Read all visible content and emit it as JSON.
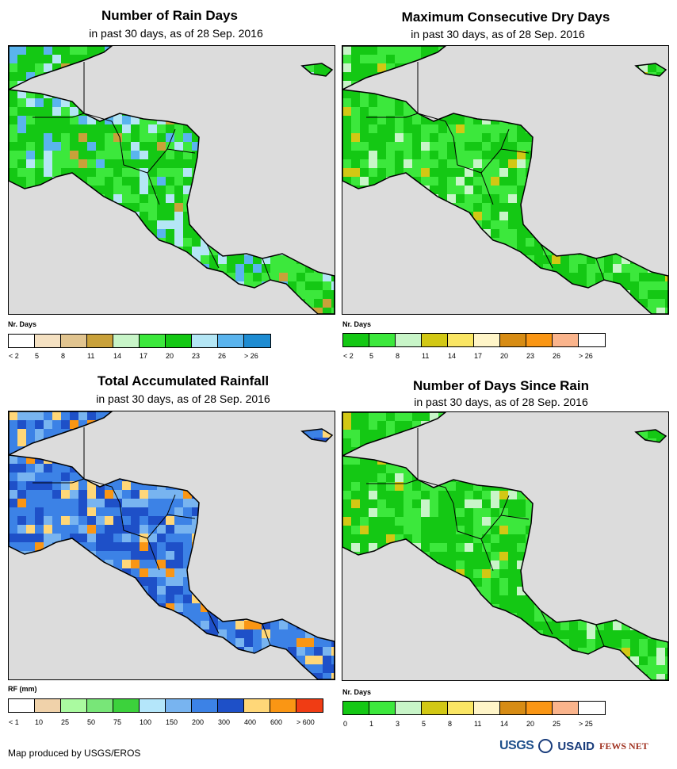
{
  "panels": [
    {
      "title": "Number of Rain Days",
      "subtitle": "in past 30 days, as of 28 Sep. 2016",
      "legend_title": "Nr. Days",
      "legend_colors": [
        "#ffffff",
        "#f5e1c2",
        "#e1c48f",
        "#c9a13a",
        "#c8f5c8",
        "#3ce83c",
        "#14c814",
        "#b4e6f5",
        "#5ab4ee",
        "#1e8cd2"
      ],
      "legend_labels": [
        "< 2",
        "5",
        "8",
        "11",
        "14",
        "17",
        "20",
        "23",
        "26",
        "> 26"
      ],
      "map_palette": [
        "#14c814",
        "#3ce83c",
        "#b4e6f5",
        "#5ab4ee",
        "#c9a13a"
      ]
    },
    {
      "title": "Maximum Consecutive Dry Days",
      "subtitle": "in past 30 days, as of 28 Sep. 2016",
      "legend_title": "Nr. Days",
      "legend_colors": [
        "#14c814",
        "#3ce83c",
        "#c8f5c8",
        "#d2c814",
        "#fae664",
        "#fff5c8",
        "#d78c14",
        "#fa9614",
        "#fab48c",
        "#ffffff"
      ],
      "legend_labels": [
        "< 2",
        "5",
        "8",
        "11",
        "14",
        "17",
        "20",
        "23",
        "26",
        "> 26"
      ],
      "map_palette": [
        "#14c814",
        "#3ce83c",
        "#3ce83c",
        "#c8f5c8",
        "#d2c814"
      ]
    },
    {
      "title": "Total Accumulated Rainfall",
      "subtitle": "in past 30 days, as of 28 Sep. 2016",
      "legend_title": "RF (mm)",
      "legend_colors": [
        "#ffffff",
        "#f0d2aa",
        "#aafaa0",
        "#78e678",
        "#3cd23c",
        "#b4e6fa",
        "#78b4f0",
        "#3c82e6",
        "#1e50c8",
        "#ffd778",
        "#fa9614",
        "#f03c14"
      ],
      "legend_labels": [
        "< 1",
        "10",
        "25",
        "50",
        "75",
        "100",
        "150",
        "200",
        "300",
        "400",
        "600",
        "> 600"
      ],
      "map_palette": [
        "#3c82e6",
        "#1e50c8",
        "#78b4f0",
        "#ffd778",
        "#fa9614"
      ]
    },
    {
      "title": "Number of Days Since Rain",
      "subtitle": "in past 30 days, as of 28 Sep. 2016",
      "legend_title": "Nr. Days",
      "legend_colors": [
        "#14c814",
        "#3ce83c",
        "#c8f5c8",
        "#d2c814",
        "#fae664",
        "#fff5c8",
        "#d78c14",
        "#fa9614",
        "#fab48c",
        "#ffffff"
      ],
      "legend_labels": [
        "0",
        "1",
        "3",
        "5",
        "8",
        "11",
        "14",
        "20",
        "25",
        "> 25"
      ],
      "map_palette": [
        "#14c814",
        "#3ce83c",
        "#14c814",
        "#c8f5c8",
        "#d2c814"
      ]
    }
  ],
  "credit": "Map produced by USGS/EROS",
  "logos": {
    "usgs": "USGS",
    "usaid": "USAID",
    "fews": "FEWS NET"
  },
  "colors": {
    "ocean": "#dcdcdc",
    "border": "#000000"
  }
}
